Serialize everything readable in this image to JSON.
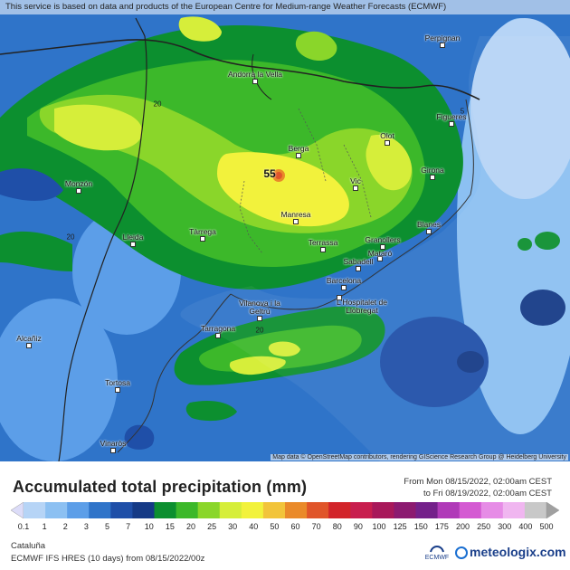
{
  "banner": "This service is based on data and products of the European Centre for Medium-range Weather Forecasts (ECMWF)",
  "attribution": "Map data © OpenStreetMap contributors, rendering GIScience Research Group @ Heidelberg University",
  "peak_value": "55",
  "contour_labels": [
    "20",
    "20",
    "5",
    "20"
  ],
  "cities": [
    "Perpignan",
    "Andorra la Vella",
    "Figueres",
    "Olot",
    "Berga",
    "Girona",
    "Vic",
    "Monzón",
    "Manresa",
    "Blanes",
    "Lleida",
    "Tàrrega",
    "Terrassa",
    "Granollers",
    "Mataró",
    "Sabadell",
    "Barcelona",
    "L'Hospitalet de Llobregat",
    "Vilanova i la Geltrú",
    "Tarragona",
    "Alcañiz",
    "Tortosa",
    "Vinaròs"
  ],
  "legend": {
    "title": "Accumulated total precipitation (mm)",
    "period_from": "From Mon 08/15/2022, 02:00am CEST",
    "period_to": "to Fri 08/19/2022, 02:00am CEST",
    "ticks": [
      "0.1",
      "1",
      "2",
      "3",
      "5",
      "7",
      "10",
      "15",
      "20",
      "25",
      "30",
      "40",
      "50",
      "60",
      "70",
      "80",
      "90",
      "100",
      "125",
      "150",
      "175",
      "200",
      "250",
      "300",
      "400",
      "500"
    ],
    "colors": [
      "#dcdcf8",
      "#b6d4f6",
      "#8cc0f2",
      "#5c9ee8",
      "#2f74c9",
      "#1f4fa8",
      "#153a86",
      "#0c8f2f",
      "#3cb82a",
      "#8ad62a",
      "#d6ee3a",
      "#f2f23c",
      "#f2c43a",
      "#ea8a2a",
      "#e0552a",
      "#d2242a",
      "#c81e4e",
      "#a8185a",
      "#8c1a70",
      "#74208a",
      "#b03ab8",
      "#d45ad2",
      "#e68ce6",
      "#f0b6f0",
      "#c8c8c8",
      "#a0a0a0"
    ],
    "region": "Cataluña",
    "model_prefix": "ECMWF IFS HRES (10 days) from",
    "model_run": "08/15/2022/00z",
    "ecmwf_logo": "ECMWF",
    "brand": "meteologix.com"
  }
}
